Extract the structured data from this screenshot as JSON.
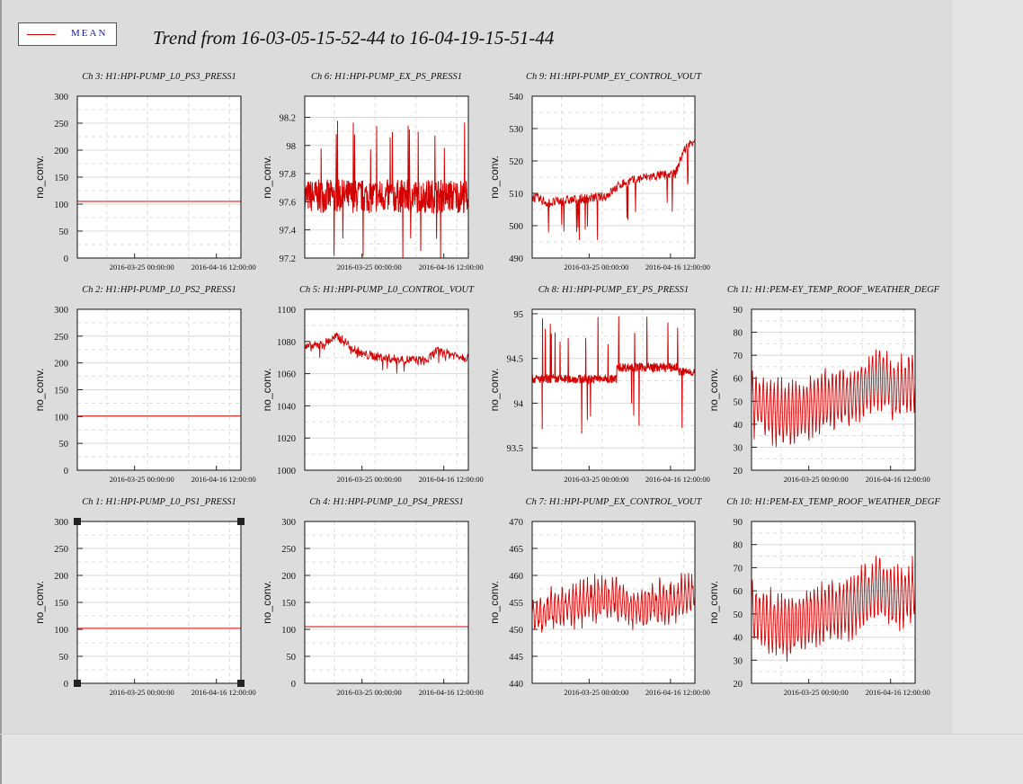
{
  "title": "Trend from 16-03-05-15-52-44 to 16-04-19-15-51-44",
  "legend": {
    "label": "MEAN",
    "color": "#d40000"
  },
  "chart_data": [
    {
      "type": "line",
      "title": "Ch 3: H1:HPI-PUMP_L0_PS3_PRESS1",
      "ylabel": "no_conv.",
      "ylim": [
        0,
        300
      ],
      "yticks": [
        "0",
        "50",
        "100",
        "150",
        "200",
        "250",
        "300"
      ],
      "xticks": [
        "2016-03-25 00:00:00",
        "2016-04-16 12:00:00"
      ],
      "kind": "flat",
      "value": 105
    },
    {
      "type": "line",
      "title": "Ch 6: H1:HPI-PUMP_EX_PS_PRESS1",
      "ylabel": "no_conv.",
      "ylim": [
        97.2,
        98.35
      ],
      "yticks": [
        "97.2",
        "97.4",
        "97.6",
        "97.8",
        "98",
        "98.2"
      ],
      "xticks": [
        "2016-03-25 00:00:00",
        "2016-04-16 12:00:00"
      ],
      "kind": "dense",
      "value": 97.64,
      "amp": 0.12,
      "spike": 0.55
    },
    {
      "type": "line",
      "title": "Ch 9: H1:HPI-PUMP_EY_CONTROL_VOUT",
      "ylabel": "no_conv.",
      "ylim": [
        490,
        540
      ],
      "yticks": [
        "490",
        "500",
        "510",
        "520",
        "530",
        "540"
      ],
      "xticks": [
        "2016-03-25 00:00:00",
        "2016-04-16 12:00:00"
      ],
      "kind": "trend",
      "points": [
        [
          0,
          509
        ],
        [
          0.1,
          507
        ],
        [
          0.25,
          508
        ],
        [
          0.45,
          509
        ],
        [
          0.55,
          513
        ],
        [
          0.7,
          515
        ],
        [
          0.88,
          516
        ],
        [
          0.93,
          523
        ],
        [
          1.0,
          527
        ]
      ],
      "amp": 1.5,
      "spike": 12
    },
    {
      "type": "line",
      "title": "Ch 2: H1:HPI-PUMP_L0_PS2_PRESS1",
      "ylabel": "no_conv.",
      "ylim": [
        0,
        300
      ],
      "yticks": [
        "0",
        "50",
        "100",
        "150",
        "200",
        "250",
        "300"
      ],
      "xticks": [
        "2016-03-25 00:00:00",
        "2016-04-16 12:00:00"
      ],
      "kind": "flat",
      "value": 101
    },
    {
      "type": "line",
      "title": "Ch 5: H1:HPI-PUMP_L0_CONTROL_VOUT",
      "ylabel": "no_conv.",
      "ylim": [
        1000,
        1100
      ],
      "yticks": [
        "1000",
        "1020",
        "1040",
        "1060",
        "1080",
        "1100"
      ],
      "xticks": [
        "2016-03-25 00:00:00",
        "2016-04-16 12:00:00"
      ],
      "kind": "trend",
      "points": [
        [
          0,
          1076
        ],
        [
          0.1,
          1078
        ],
        [
          0.2,
          1083
        ],
        [
          0.35,
          1072
        ],
        [
          0.55,
          1069
        ],
        [
          0.75,
          1068
        ],
        [
          0.8,
          1074
        ],
        [
          1.0,
          1070
        ]
      ],
      "amp": 3,
      "spike": 8
    },
    {
      "type": "line",
      "title": "Ch 8: H1:HPI-PUMP_EY_PS_PRESS1",
      "ylabel": "no_conv.",
      "ylim": [
        93.25,
        95.05
      ],
      "yticks": [
        "93.5",
        "94",
        "94.5",
        "95"
      ],
      "xticks": [
        "2016-03-25 00:00:00",
        "2016-04-16 12:00:00"
      ],
      "kind": "dense",
      "value": 94.27,
      "amp": 0.05,
      "spike": 0.75,
      "step": [
        0.52,
        94.4
      ]
    },
    {
      "type": "line",
      "title": "Ch 11: H1:PEM-EY_TEMP_ROOF_WEATHER_DEGF",
      "ylabel": "no_conv.",
      "ylim": [
        20,
        90
      ],
      "yticks": [
        "20",
        "30",
        "40",
        "50",
        "60",
        "70",
        "80",
        "90"
      ],
      "xticks": [
        "2016-03-25 00:00:00",
        "2016-04-16 12:00:00"
      ],
      "kind": "daily",
      "points": [
        [
          0,
          50
        ],
        [
          0.2,
          44
        ],
        [
          0.45,
          50
        ],
        [
          0.6,
          52
        ],
        [
          0.78,
          60
        ],
        [
          0.88,
          55
        ],
        [
          1.0,
          58
        ]
      ],
      "amp": 15
    },
    {
      "type": "line",
      "title": "Ch 1: H1:HPI-PUMP_L0_PS1_PRESS1",
      "ylabel": "no_conv.",
      "ylim": [
        0,
        300
      ],
      "yticks": [
        "0",
        "50",
        "100",
        "150",
        "200",
        "250",
        "300"
      ],
      "xticks": [
        "2016-03-25 00:00:00",
        "2016-04-16 12:00:00"
      ],
      "kind": "flat",
      "value": 102,
      "selected": true
    },
    {
      "type": "line",
      "title": "Ch 4: H1:HPI-PUMP_L0_PS4_PRESS1",
      "ylabel": "no_conv.",
      "ylim": [
        0,
        300
      ],
      "yticks": [
        "0",
        "50",
        "100",
        "150",
        "200",
        "250",
        "300"
      ],
      "xticks": [
        "2016-03-25 00:00:00",
        "2016-04-16 12:00:00"
      ],
      "kind": "flat",
      "value": 105
    },
    {
      "type": "line",
      "title": "Ch 7: H1:HPI-PUMP_EX_CONTROL_VOUT",
      "ylabel": "no_conv.",
      "ylim": [
        440,
        470
      ],
      "yticks": [
        "440",
        "445",
        "450",
        "455",
        "460",
        "465",
        "470"
      ],
      "xticks": [
        "2016-03-25 00:00:00",
        "2016-04-16 12:00:00"
      ],
      "kind": "daily",
      "points": [
        [
          0,
          452
        ],
        [
          0.2,
          454
        ],
        [
          0.45,
          456
        ],
        [
          0.65,
          454
        ],
        [
          0.85,
          455
        ],
        [
          1.0,
          457
        ]
      ],
      "amp": 4
    },
    {
      "type": "line",
      "title": "Ch 10: H1:PEM-EX_TEMP_ROOF_WEATHER_DEGF",
      "ylabel": "no_conv.",
      "ylim": [
        20,
        90
      ],
      "yticks": [
        "20",
        "30",
        "40",
        "50",
        "60",
        "70",
        "80",
        "90"
      ],
      "xticks": [
        "2016-03-25 00:00:00",
        "2016-04-16 12:00:00"
      ],
      "kind": "daily",
      "points": [
        [
          0,
          50
        ],
        [
          0.2,
          44
        ],
        [
          0.45,
          50
        ],
        [
          0.6,
          53
        ],
        [
          0.78,
          62
        ],
        [
          0.88,
          56
        ],
        [
          1.0,
          60
        ]
      ],
      "amp": 15
    }
  ]
}
